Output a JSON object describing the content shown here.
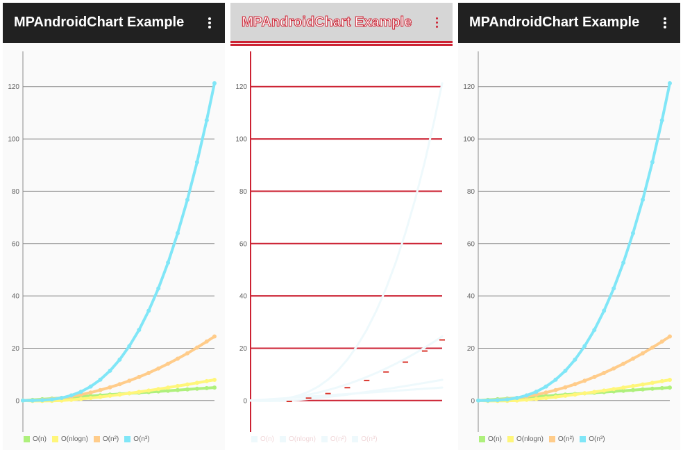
{
  "app": {
    "title": "MPAndroidChart Example",
    "toolbar_color": "#212121",
    "overflow_icon": "more-vert-icon"
  },
  "chart_data": {
    "type": "line",
    "y_ticks": [
      "0",
      "20",
      "40",
      "60",
      "80",
      "100",
      "120"
    ],
    "ylim": [
      -12,
      134
    ],
    "xlim": [
      0,
      4.95
    ],
    "grid": true,
    "legend_position": "bottom-left",
    "x": [
      0,
      0.25,
      0.5,
      0.75,
      1.0,
      1.25,
      1.5,
      1.75,
      2.0,
      2.25,
      2.5,
      2.75,
      3.0,
      3.25,
      3.5,
      3.75,
      4.0,
      4.25,
      4.5,
      4.75,
      4.95
    ],
    "series": [
      {
        "name": "O(n)",
        "color": "#aef07c",
        "values": [
          0,
          0.25,
          0.5,
          0.75,
          1.0,
          1.25,
          1.5,
          1.75,
          2.0,
          2.25,
          2.5,
          2.75,
          3.0,
          3.25,
          3.5,
          3.75,
          4.0,
          4.25,
          4.5,
          4.75,
          4.95
        ]
      },
      {
        "name": "O(nlogn)",
        "color": "#fff67a",
        "values": [
          0,
          -0.15,
          -0.17,
          -0.11,
          0,
          0.28,
          0.61,
          0.98,
          1.39,
          1.82,
          2.29,
          2.78,
          3.3,
          3.83,
          4.38,
          4.96,
          5.55,
          6.15,
          6.77,
          7.4,
          7.92
        ]
      },
      {
        "name": "O(n²)",
        "color": "#ffcc8a",
        "values": [
          0,
          0.06,
          0.25,
          0.56,
          1.0,
          1.56,
          2.25,
          3.06,
          4.0,
          5.06,
          6.25,
          7.56,
          9.0,
          10.56,
          12.25,
          14.06,
          16.0,
          18.06,
          20.25,
          22.56,
          24.5
        ]
      },
      {
        "name": "O(n³)",
        "color": "#80e6f7",
        "values": [
          0,
          0.02,
          0.13,
          0.42,
          1.0,
          1.95,
          3.38,
          5.36,
          8.0,
          11.39,
          15.63,
          20.8,
          27.0,
          34.33,
          42.88,
          52.73,
          64.0,
          76.77,
          91.13,
          107.17,
          121.29
        ]
      }
    ]
  }
}
